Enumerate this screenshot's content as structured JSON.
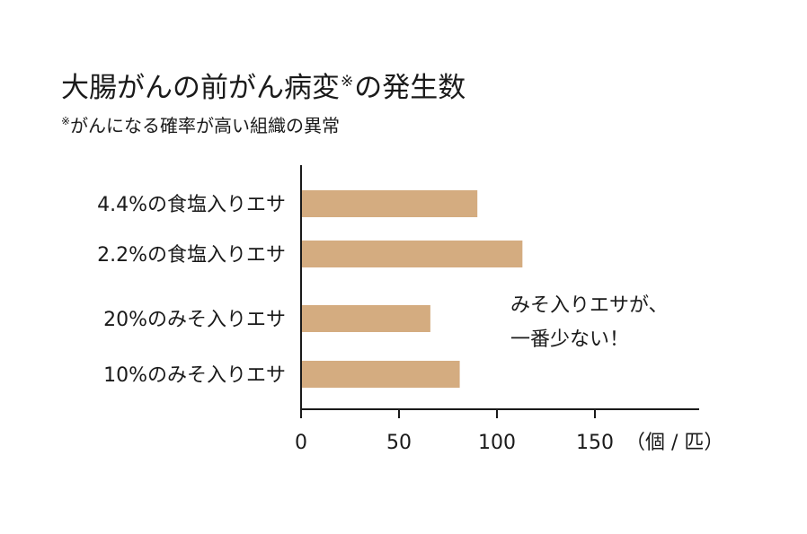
{
  "header": {
    "title_main": "大腸がんの前がん病変",
    "title_mark": "※",
    "title_tail": "の発生数",
    "note_mark": "※",
    "note_text": "がんになる確率が高い組織の異常"
  },
  "annotation": {
    "line1": "みそ入りエサが、",
    "line2": "一番少ない！"
  },
  "colors": {
    "bar": "#d4ac80",
    "axis": "#1a1a1a"
  },
  "chart_data": {
    "type": "bar",
    "orientation": "horizontal",
    "categories": [
      "4.4%の食塩入りエサ",
      "2.2%の食塩入りエサ",
      "20%のみそ入りエサ",
      "10%のみそ入りエサ"
    ],
    "values": [
      90,
      113,
      66,
      81
    ],
    "xlim": [
      0,
      200
    ],
    "xticks": [
      0,
      50,
      100,
      150
    ],
    "xunit": "（個 / 匹）",
    "grid": false
  }
}
